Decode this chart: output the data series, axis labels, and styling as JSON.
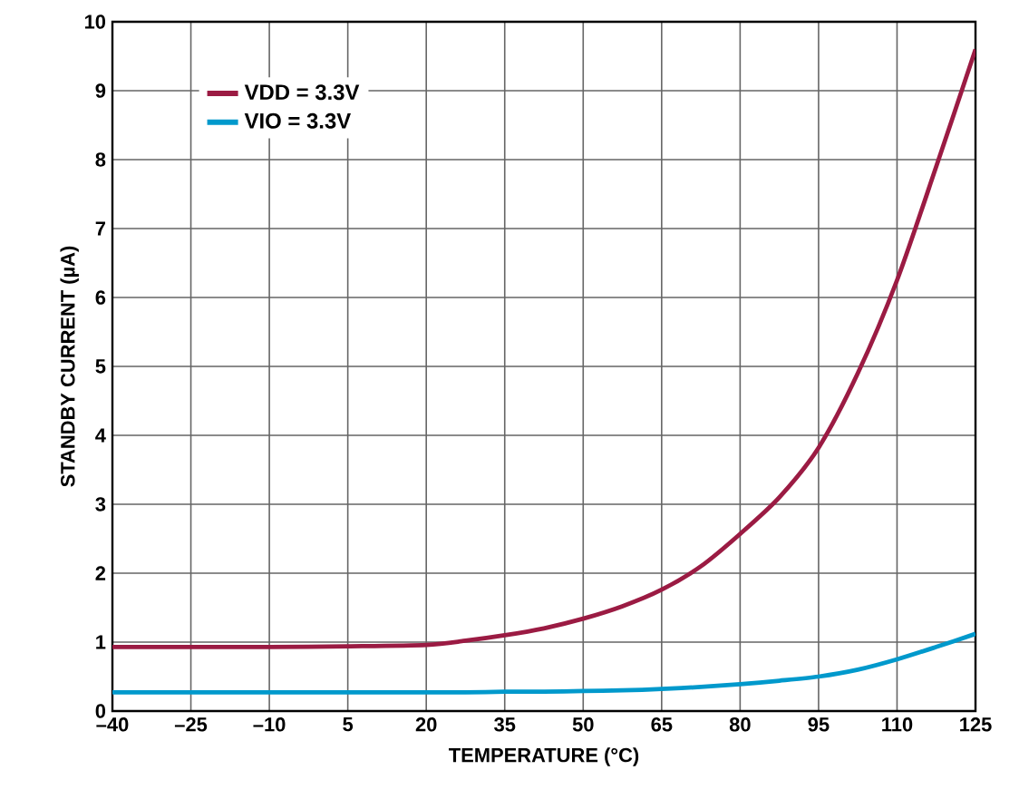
{
  "chart_data": {
    "type": "line",
    "xlabel": "TEMPERATURE (°C)",
    "ylabel": "STANDBY CURRENT (µA)",
    "x": [
      -40,
      -25,
      -10,
      5,
      20,
      27.5,
      35,
      42.5,
      50,
      57.5,
      65,
      72.5,
      80,
      87.5,
      95,
      102.5,
      110,
      117.5,
      125
    ],
    "series": [
      {
        "name": "VDD = 3.3V",
        "color": "#9b1b43",
        "values": [
          0.93,
          0.93,
          0.93,
          0.94,
          0.96,
          1.02,
          1.1,
          1.2,
          1.34,
          1.52,
          1.76,
          2.1,
          2.57,
          3.1,
          3.82,
          4.9,
          6.25,
          7.9,
          9.6
        ]
      },
      {
        "name": "VIO = 3.3V",
        "color": "#0099cc",
        "values": [
          0.27,
          0.27,
          0.27,
          0.27,
          0.27,
          0.27,
          0.28,
          0.28,
          0.29,
          0.3,
          0.32,
          0.35,
          0.39,
          0.44,
          0.5,
          0.6,
          0.75,
          0.93,
          1.12
        ]
      }
    ],
    "xlim": [
      -40,
      125
    ],
    "ylim": [
      0,
      10
    ],
    "xticks": [
      {
        "value": -40,
        "label": "–40"
      },
      {
        "value": -25,
        "label": "–25"
      },
      {
        "value": -10,
        "label": "–10"
      },
      5,
      20,
      35,
      50,
      65,
      80,
      95,
      110,
      125
    ],
    "yticks": [
      0,
      1,
      2,
      3,
      4,
      5,
      6,
      7,
      8,
      9,
      10
    ],
    "grid": true,
    "legend": "top left",
    "line_style": "solid",
    "marker": "none"
  }
}
